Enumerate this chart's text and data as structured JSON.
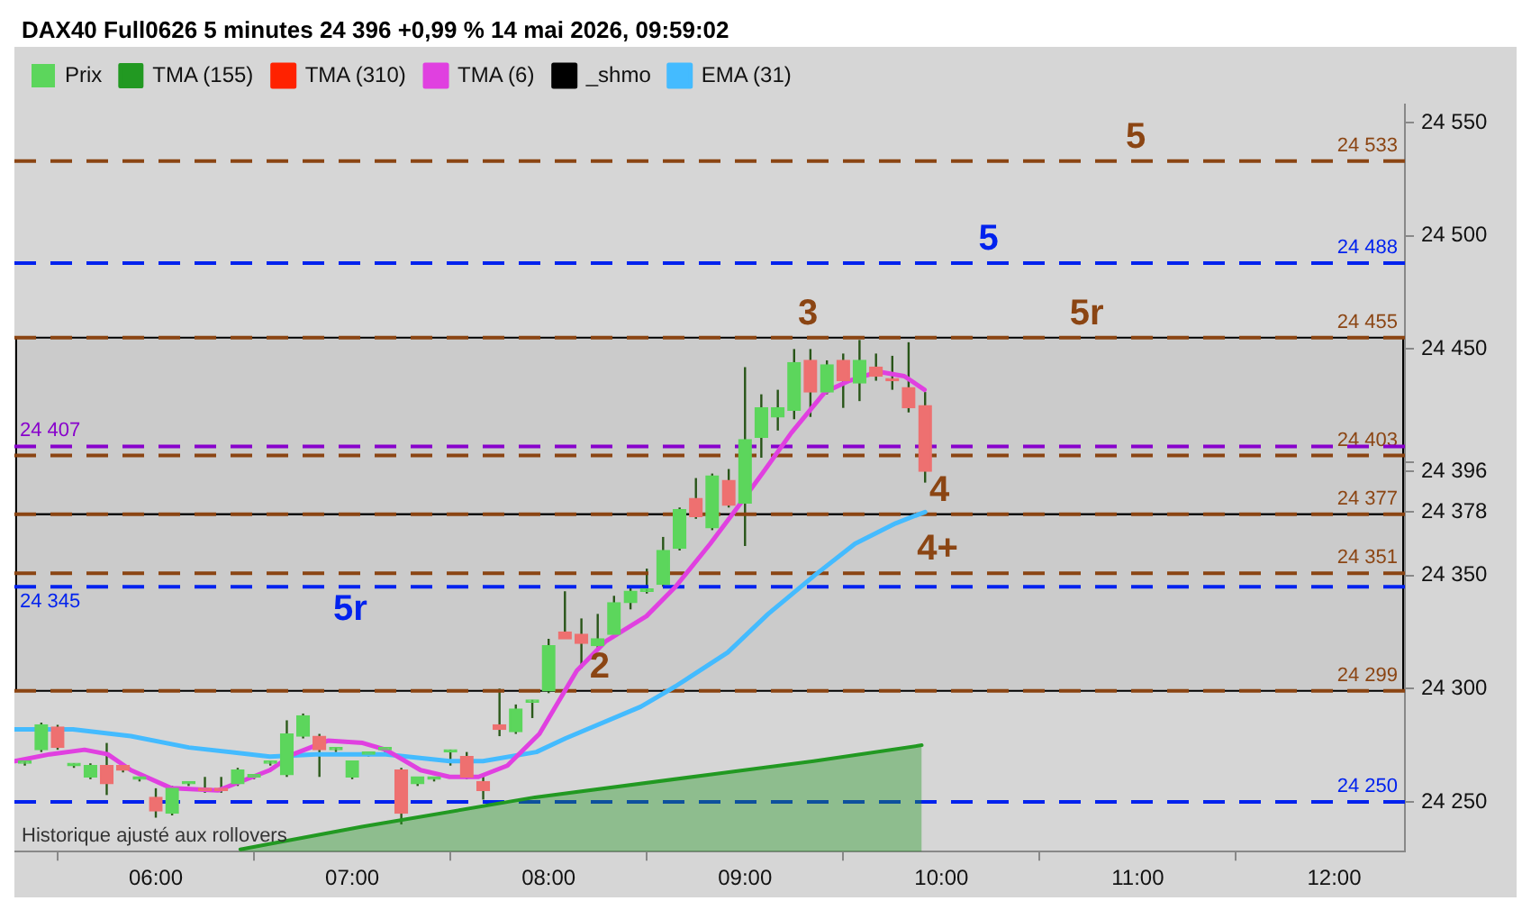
{
  "chart_data": {
    "type": "candlestick",
    "title": "DAX40 Full0626 5 minutes 24 396 +0,99 % 14 mai 2026, 09:59:02",
    "legend": "top left",
    "xlim": [
      5.28,
      12.36
    ],
    "xticks": [
      {
        "value": 6,
        "label": "06:00"
      },
      {
        "value": 7,
        "label": "07:00"
      },
      {
        "value": 8,
        "label": "08:00"
      },
      {
        "value": 9,
        "label": "09:00"
      },
      {
        "value": 10,
        "label": "10:00"
      },
      {
        "value": 11,
        "label": "11:00"
      },
      {
        "value": 12,
        "label": "12:00"
      }
    ],
    "ylim": [
      24228,
      24558
    ],
    "yticks": [
      {
        "value": 24250,
        "label": "24 250"
      },
      {
        "value": 24300,
        "label": "24 300"
      },
      {
        "value": 24350,
        "label": "24 350"
      },
      {
        "value": 24378,
        "label": "24 378"
      },
      {
        "value": 24396,
        "label": "24 396"
      },
      {
        "value": 24400,
        "label": null
      },
      {
        "value": 24450,
        "label": "24 450"
      },
      {
        "value": 24500,
        "label": "24 500"
      },
      {
        "value": 24550,
        "label": "24 550"
      }
    ],
    "series": [
      {
        "name": "Prix",
        "color": "#5cd65c",
        "x": [
          5.333,
          5.417,
          5.5,
          5.583,
          5.667,
          5.75,
          5.833,
          5.917,
          6,
          6.083,
          6.167,
          6.25,
          6.333,
          6.417,
          6.5,
          6.583,
          6.667,
          6.75,
          6.833,
          6.917,
          7,
          7.083,
          7.167,
          7.25,
          7.333,
          7.417,
          7.5,
          7.583,
          7.667,
          7.75,
          7.833,
          7.917,
          8,
          8.083,
          8.167,
          8.25,
          8.333,
          8.417,
          8.5,
          8.583,
          8.667,
          8.75,
          8.833,
          8.917,
          9,
          9.083,
          9.167,
          9.25,
          9.333,
          9.417,
          9.5,
          9.583,
          9.667,
          9.75,
          9.833,
          9.917
        ],
        "ohlc": [
          [
            24267,
            24268,
            24266,
            24268
          ],
          [
            24273,
            24285,
            24272,
            24284
          ],
          [
            24283,
            24284,
            24273,
            24274
          ],
          [
            24266,
            24267,
            24265,
            24267
          ],
          [
            24261,
            24267,
            24260,
            24266
          ],
          [
            24266,
            24276,
            24253,
            24258
          ],
          [
            24266,
            24267,
            24263,
            24264
          ],
          [
            24260,
            24261,
            24259,
            24261
          ],
          [
            24252,
            24256,
            24243,
            24246
          ],
          [
            24245,
            24257,
            24244,
            24256
          ],
          [
            24258,
            24259,
            24257,
            24259
          ],
          [
            24256,
            24261,
            24254,
            24255
          ],
          [
            24256,
            24261,
            24254,
            24255
          ],
          [
            24258,
            24265,
            24257,
            24264
          ],
          [
            24261,
            24262,
            24260,
            24262
          ],
          [
            24267,
            24268,
            24266,
            24268
          ],
          [
            24262,
            24286,
            24261,
            24280
          ],
          [
            24279,
            24289,
            24278,
            24288
          ],
          [
            24279,
            24280,
            24261,
            24273
          ],
          [
            24273,
            24274,
            24272,
            24274
          ],
          [
            24261,
            24268,
            24260,
            24268
          ],
          [
            24271,
            24272,
            24270,
            24272
          ],
          [
            24273,
            24274,
            24272,
            24274
          ],
          [
            24264,
            24265,
            24240,
            24245
          ],
          [
            24258,
            24261,
            24257,
            24261
          ],
          [
            24260,
            24261,
            24259,
            24261
          ],
          [
            24272,
            24273,
            24266,
            24273
          ],
          [
            24270,
            24272,
            24260,
            24261
          ],
          [
            24259,
            24262,
            24251,
            24255
          ],
          [
            24284,
            24300,
            24279,
            24282
          ],
          [
            24281,
            24293,
            24280,
            24291
          ],
          [
            24294,
            24295,
            24287,
            24295
          ],
          [
            24299,
            24322,
            24298,
            24319
          ],
          [
            24325,
            24343,
            24322,
            24322
          ],
          [
            24324,
            24331,
            24309,
            24320
          ],
          [
            24319,
            24333,
            24317,
            24322
          ],
          [
            24324,
            24341,
            24323,
            24338
          ],
          [
            24338,
            24345,
            24335,
            24343
          ],
          [
            24343,
            24353,
            24342,
            24344
          ],
          [
            24346,
            24367,
            24345,
            24361
          ],
          [
            24362,
            24380,
            24361,
            24379
          ],
          [
            24384,
            24393,
            24375,
            24376
          ],
          [
            24371,
            24395,
            24370,
            24394
          ],
          [
            24392,
            24397,
            24380,
            24381
          ],
          [
            24382,
            24442,
            24363,
            24410
          ],
          [
            24411,
            24430,
            24402,
            24424
          ],
          [
            24420,
            24432,
            24414,
            24424
          ],
          [
            24423,
            24450,
            24419,
            24444
          ],
          [
            24445,
            24450,
            24420,
            24431
          ],
          [
            24431,
            24445,
            24430,
            24443
          ],
          [
            24445,
            24448,
            24424,
            24436
          ],
          [
            24435,
            24454,
            24427,
            24445
          ],
          [
            24442,
            24448,
            24436,
            24438
          ],
          [
            24437,
            24447,
            24432,
            24436
          ],
          [
            24433,
            24453,
            24422,
            24424
          ],
          [
            24425,
            24431,
            24391,
            24396
          ]
        ],
        "colors": [
          "#5cd65c",
          "#5cd65c",
          "#ee7070",
          "#5cd65c",
          "#5cd65c",
          "#ee7070",
          "#ee7070",
          "#5cd65c",
          "#ee7070",
          "#5cd65c",
          "#5cd65c",
          "#ee7070",
          "#ee7070",
          "#5cd65c",
          "#5cd65c",
          "#5cd65c",
          "#5cd65c",
          "#5cd65c",
          "#ee7070",
          "#5cd65c",
          "#5cd65c",
          "#5cd65c",
          "#5cd65c",
          "#ee7070",
          "#5cd65c",
          "#5cd65c",
          "#5cd65c",
          "#ee7070",
          "#ee7070",
          "#ee7070",
          "#5cd65c",
          "#5cd65c",
          "#5cd65c",
          "#ee7070",
          "#ee7070",
          "#5cd65c",
          "#5cd65c",
          "#5cd65c",
          "#5cd65c",
          "#5cd65c",
          "#5cd65c",
          "#ee7070",
          "#5cd65c",
          "#ee7070",
          "#5cd65c",
          "#5cd65c",
          "#5cd65c",
          "#5cd65c",
          "#ee7070",
          "#5cd65c",
          "#ee7070",
          "#5cd65c",
          "#ee7070",
          "#ee7070",
          "#ee7070",
          "#ee7070"
        ]
      },
      {
        "name": "TMA (155)",
        "type": "area",
        "color": "#229922",
        "x": [
          6.43,
          7.05,
          7.93,
          8.82,
          9.35,
          9.9
        ],
        "values": [
          24229,
          24239,
          24252,
          24262,
          24268,
          24275
        ]
      },
      {
        "name": "TMA (310)",
        "type": "line",
        "color": "#ff2200"
      },
      {
        "name": "TMA (6)",
        "type": "line",
        "color": "#e040e0",
        "x": [
          5.283,
          5.46,
          5.637,
          5.755,
          5.873,
          6.08,
          6.316,
          6.581,
          6.699,
          6.876,
          7.053,
          7.171,
          7.348,
          7.496,
          7.643,
          7.79,
          7.953,
          8.144,
          8.292,
          8.498,
          8.646,
          8.823,
          8.97,
          9.088,
          9.236,
          9.407,
          9.531,
          9.679,
          9.811,
          9.914
        ],
        "values": [
          24268,
          24271,
          24273,
          24271,
          24264,
          24256,
          24255,
          24264,
          24271,
          24277,
          24276,
          24273,
          24264,
          24261,
          24261,
          24266,
          24280,
          24308,
          24321,
          24332,
          24345,
          24364,
          24381,
          24395,
          24413,
          24431,
          24436,
          24440,
          24438,
          24432
        ]
      },
      {
        "name": "_shmo",
        "type": "line",
        "color": "#000000"
      },
      {
        "name": "EMA (31)",
        "type": "line",
        "color": "#44bbff",
        "x": [
          5.283,
          5.578,
          5.873,
          6.168,
          6.581,
          6.817,
          7.171,
          7.496,
          7.666,
          7.938,
          8.086,
          8.469,
          8.646,
          8.912,
          9.118,
          9.354,
          9.56,
          9.767,
          9.885,
          9.917
        ],
        "values": [
          24282,
          24282,
          24279,
          24274,
          24270,
          24271,
          24271,
          24268,
          24268,
          24272,
          24278,
          24292,
          24301,
          24316,
          24333,
          24350,
          24364,
          24373,
          24377,
          24378
        ]
      }
    ],
    "ref_lines": [
      {
        "axis": "y",
        "value": 24533,
        "label": "24 533",
        "color": "#8b4513",
        "line_style": "dashed"
      },
      {
        "axis": "y",
        "value": 24488,
        "label": "24 488",
        "color": "#0022ee",
        "line_style": "dashed"
      },
      {
        "axis": "y",
        "value": 24455,
        "label": "24 455",
        "color": "#8b4513",
        "line_style": "dashed"
      },
      {
        "axis": "y",
        "value": 24403,
        "label": "24 403",
        "color": "#8b4513",
        "line_style": "dashed"
      },
      {
        "axis": "y",
        "value": 24407,
        "label": "24 407",
        "color": "#8800cc",
        "line_style": "dashed"
      },
      {
        "axis": "y",
        "value": 24377,
        "label": "24 377",
        "color": "#8b4513",
        "line_style": "dashed"
      },
      {
        "axis": "y",
        "value": 24351,
        "label": "24 351",
        "color": "#8b4513",
        "line_style": "dashed"
      },
      {
        "axis": "y",
        "value": 24345,
        "label": "24 345",
        "color": "#0022ee",
        "line_style": "dashed"
      },
      {
        "axis": "y",
        "value": 24299,
        "label": "24 299",
        "color": "#8b4513",
        "line_style": "dashed"
      },
      {
        "axis": "y",
        "value": 24250,
        "label": "24 250",
        "color": "#0022ee",
        "line_style": "dashed"
      }
    ],
    "bands": [
      {
        "axis": "y",
        "from": 24377,
        "to": 24455,
        "color": "#000000"
      },
      {
        "axis": "y",
        "from": 24299,
        "to": 24377,
        "color": "#000000"
      }
    ],
    "annotations": [
      {
        "text": "5",
        "x": 10.99,
        "y": 24533
      },
      {
        "text": "5",
        "x": 10.24,
        "y": 24488
      },
      {
        "text": "3",
        "x": 9.32,
        "y": 24455
      },
      {
        "text": "5r",
        "x": 10.74,
        "y": 24455
      },
      {
        "text": "4",
        "x": 9.99,
        "y": 24377
      },
      {
        "text": "4+",
        "x": 9.98,
        "y": 24351
      },
      {
        "text": "5r",
        "x": 6.99,
        "y": 24345
      },
      {
        "text": "2",
        "x": 8.26,
        "y": 24299
      },
      "Historique ajusté aux rollovers"
    ]
  }
}
